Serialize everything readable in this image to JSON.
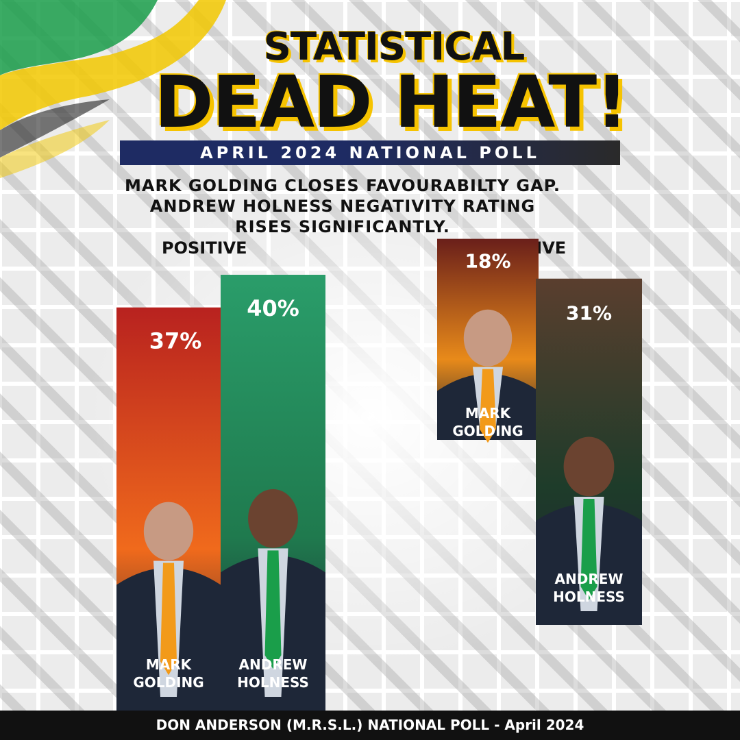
{
  "header": {
    "title_line1": "STATISTICAL",
    "title_line2": "DEAD HEAT!",
    "poll_banner": "APRIL 2024 NATIONAL POLL",
    "subtitle_lines": [
      "MARK GOLDING CLOSES FAVOURABILTY GAP.",
      "ANDREW HOLNESS NEGATIVITY RATING",
      "RISES SIGNIFICANTLY."
    ]
  },
  "chart_data": {
    "type": "bar",
    "groups": [
      {
        "label": "POSITIVE",
        "bars": [
          {
            "name_lines": [
              "MARK",
              "GOLDING"
            ],
            "value": 37,
            "display": "37%",
            "color_top": "#b8221f",
            "color_bottom": "#f06a1c"
          },
          {
            "name_lines": [
              "ANDREW",
              "HOLNESS"
            ],
            "value": 40,
            "display": "40%",
            "color_top": "#2a9d6a",
            "color_bottom": "#1f7a4e"
          }
        ]
      },
      {
        "label": "NEGATIVE",
        "bars": [
          {
            "name_lines": [
              "MARK",
              "GOLDING"
            ],
            "value": 18,
            "display": "18%",
            "color_top": "#6a1f1a",
            "color_bottom": "#e88a1a"
          },
          {
            "name_lines": [
              "ANDREW",
              "HOLNESS"
            ],
            "value": 31,
            "display": "31%",
            "color_top": "#5a3e2e",
            "color_bottom": "#1e3c2a"
          }
        ]
      }
    ]
  },
  "footer": {
    "text": "DON ANDERSON (M.R.S.L.) NATIONAL POLL - April 2024"
  },
  "colors": {
    "accent_yellow": "#f6c300",
    "banner_navy": "#1e2b63",
    "flag_green": "#1a9e4a",
    "footer_bg": "#111111"
  }
}
